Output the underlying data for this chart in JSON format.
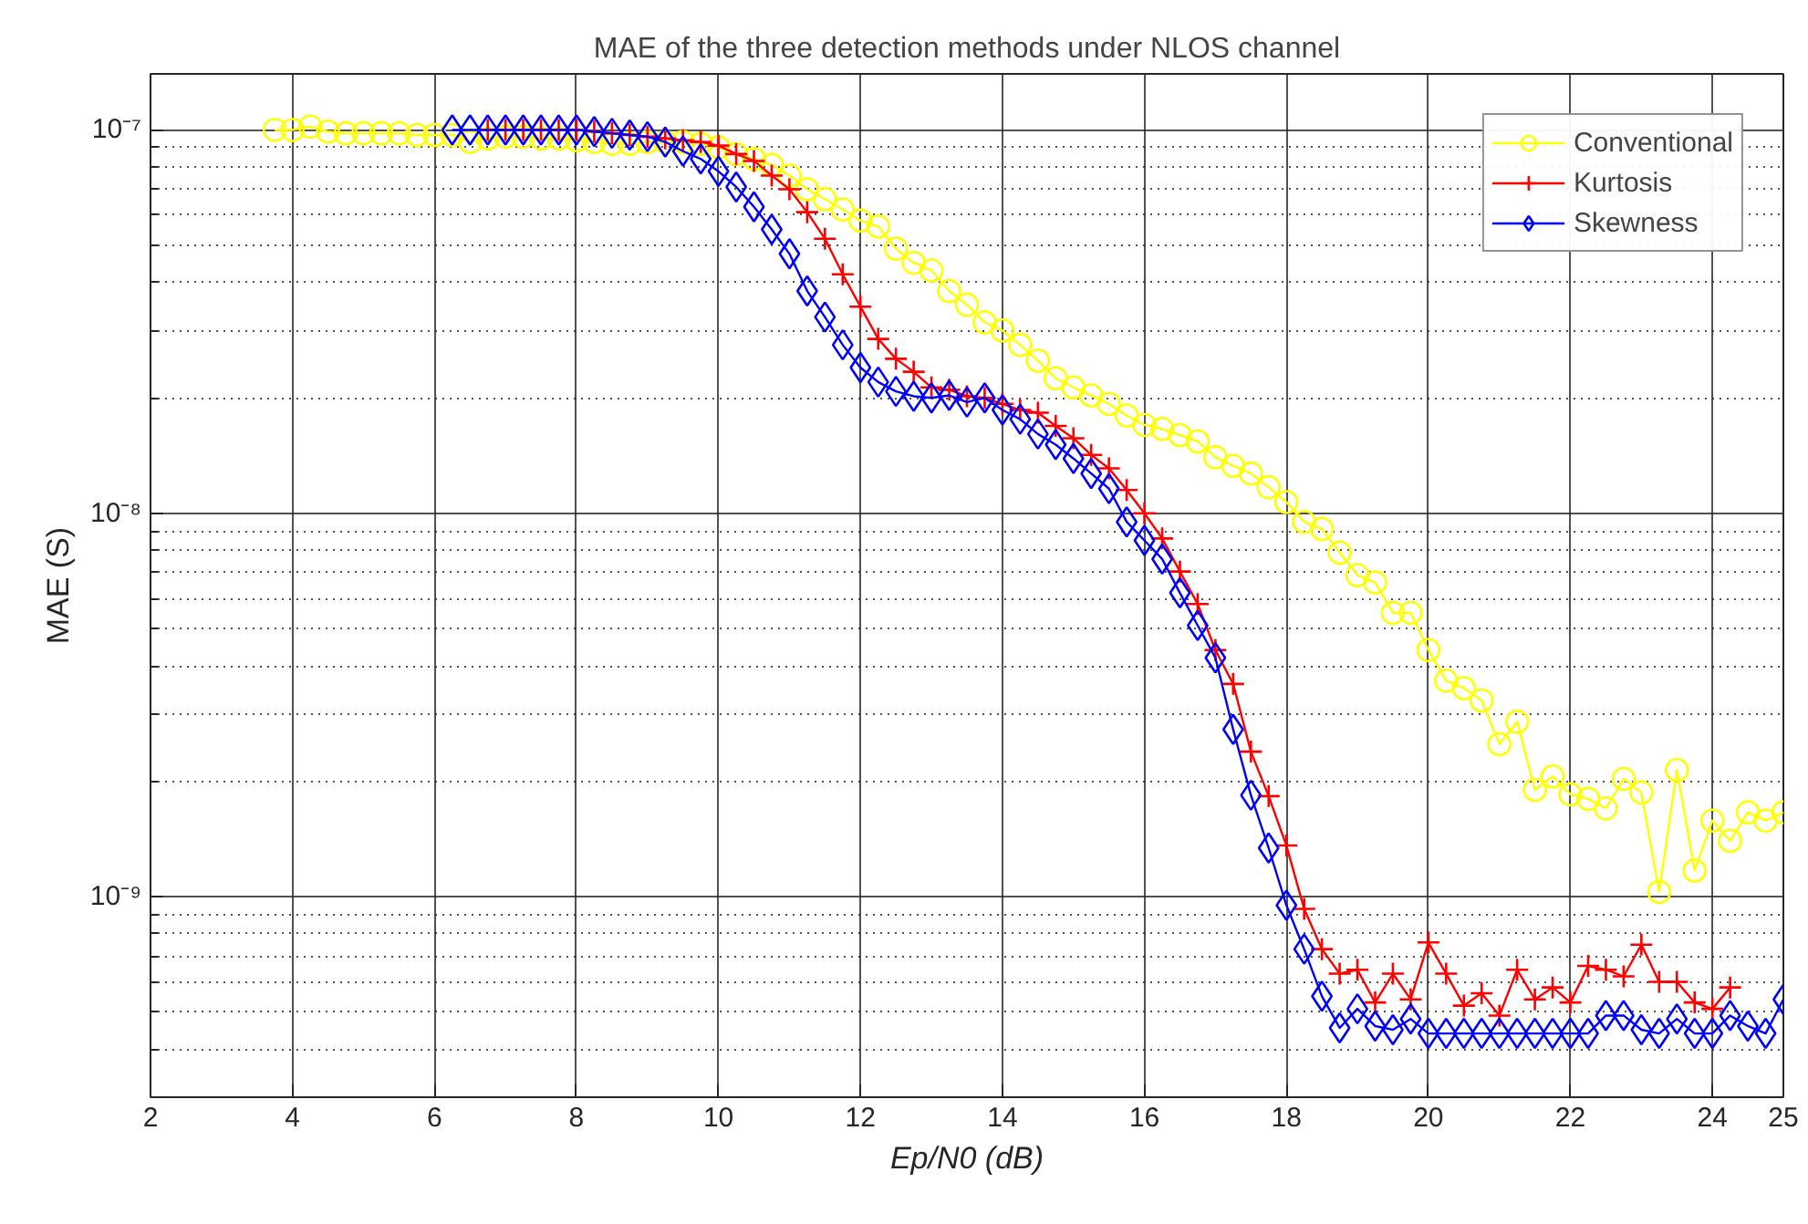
{
  "chart_data": {
    "type": "line",
    "title": "MAE of the three detection methods under NLOS channel",
    "xlabel": "Ep/N0 (dB)",
    "ylabel": "MAE (S)",
    "log": "y",
    "grid": true,
    "legend": "top right",
    "line_style": "solid",
    "xlim": [
      2,
      25
    ],
    "xticks": [
      2,
      4,
      6,
      8,
      10,
      12,
      14,
      16,
      18,
      20,
      22,
      24,
      25
    ],
    "ylim": [
      3e-10,
      1.4e-07
    ],
    "yticks": [
      {
        "value": 4e-10,
        "label": null
      },
      {
        "value": 5e-10,
        "label": null
      },
      {
        "value": 6e-10,
        "label": null
      },
      {
        "value": 7e-10,
        "label": null
      },
      {
        "value": 8e-10,
        "label": null
      },
      {
        "value": 9e-10,
        "label": null
      },
      {
        "value": 1e-09,
        "label": "10⁻⁹"
      },
      {
        "value": 2e-09,
        "label": null
      },
      {
        "value": 3e-09,
        "label": null
      },
      {
        "value": 4e-09,
        "label": null
      },
      {
        "value": 5e-09,
        "label": null
      },
      {
        "value": 6e-09,
        "label": null
      },
      {
        "value": 7e-09,
        "label": null
      },
      {
        "value": 8e-09,
        "label": null
      },
      {
        "value": 9e-09,
        "label": null
      },
      {
        "value": 1e-08,
        "label": "10⁻⁸"
      },
      {
        "value": 2e-08,
        "label": null
      },
      {
        "value": 3e-08,
        "label": null
      },
      {
        "value": 4e-08,
        "label": null
      },
      {
        "value": 5e-08,
        "label": null
      },
      {
        "value": 6e-08,
        "label": null
      },
      {
        "value": 7e-08,
        "label": null
      },
      {
        "value": 8e-08,
        "label": null
      },
      {
        "value": 9e-08,
        "label": null
      },
      {
        "value": 1e-07,
        "label": "10⁻⁷"
      }
    ],
    "series": [
      {
        "name": "Conventional",
        "color": "#ffff00",
        "marker": "circle",
        "x": [
          3.75,
          4,
          4.25,
          4.5,
          4.75,
          5,
          5.25,
          5.5,
          5.75,
          6,
          6.25,
          6.5,
          6.75,
          7,
          7.25,
          7.5,
          7.75,
          8,
          8.25,
          8.5,
          8.75,
          9,
          9.25,
          9.5,
          9.75,
          10,
          10.25,
          10.5,
          10.75,
          11,
          11.25,
          11.5,
          11.75,
          12,
          12.25,
          12.5,
          12.75,
          13,
          13.25,
          13.5,
          13.75,
          14,
          14.25,
          14.5,
          14.75,
          15,
          15.25,
          15.5,
          15.75,
          16,
          16.25,
          16.5,
          16.75,
          17,
          17.25,
          17.5,
          17.75,
          18,
          18.25,
          18.5,
          18.75,
          19,
          19.25,
          19.5,
          19.75,
          20,
          20.25,
          20.5,
          20.75,
          21,
          21.25,
          21.5,
          21.75,
          22,
          22.25,
          22.5,
          22.75,
          23,
          23.25,
          23.5,
          23.75,
          24,
          24.25,
          24.5,
          24.75,
          25
        ],
        "values": [
          1e-07,
          1e-07,
          1.02e-07,
          9.9e-08,
          9.8e-08,
          9.8e-08,
          9.8e-08,
          9.8e-08,
          9.7e-08,
          9.7e-08,
          9.7e-08,
          9.3e-08,
          9.5e-08,
          9.6e-08,
          9.6e-08,
          9.5e-08,
          9.5e-08,
          9.4e-08,
          9.3e-08,
          9.2e-08,
          9.2e-08,
          9.3e-08,
          9.3e-08,
          9.3e-08,
          9.2e-08,
          9e-08,
          8.65e-08,
          8.4e-08,
          8.1e-08,
          7.6e-08,
          7e-08,
          6.6e-08,
          6.2e-08,
          5.8e-08,
          5.6e-08,
          4.9e-08,
          4.5e-08,
          4.3e-08,
          3.8e-08,
          3.5e-08,
          3.15e-08,
          3e-08,
          2.75e-08,
          2.5e-08,
          2.25e-08,
          2.13e-08,
          2.03e-08,
          1.93e-08,
          1.8e-08,
          1.7e-08,
          1.66e-08,
          1.6e-08,
          1.54e-08,
          1.4e-08,
          1.33e-08,
          1.27e-08,
          1.17e-08,
          1.07e-08,
          9.5e-09,
          9.1e-09,
          7.9e-09,
          6.9e-09,
          6.6e-09,
          5.5e-09,
          5.5e-09,
          4.4e-09,
          3.66e-09,
          3.5e-09,
          3.25e-09,
          2.5e-09,
          2.86e-09,
          1.9e-09,
          2.06e-09,
          1.85e-09,
          1.8e-09,
          1.7e-09,
          2.03e-09,
          1.87e-09,
          1.03e-09,
          2.14e-09,
          1.17e-09,
          1.58e-09,
          1.4e-09,
          1.66e-09,
          1.58e-09,
          1.66e-09
        ]
      },
      {
        "name": "Kurtosis",
        "color": "#ff0000",
        "marker": "cross",
        "x": [
          6.75,
          7,
          7.25,
          7.5,
          7.75,
          8,
          8.25,
          8.5,
          8.75,
          9,
          9.25,
          9.5,
          9.75,
          10,
          10.25,
          10.5,
          10.75,
          11,
          11.25,
          11.5,
          11.75,
          12,
          12.25,
          12.5,
          12.75,
          13,
          13.25,
          13.5,
          13.75,
          14,
          14.25,
          14.5,
          14.75,
          15,
          15.25,
          15.5,
          15.75,
          16,
          16.25,
          16.5,
          16.75,
          17,
          17.25,
          17.5,
          17.75,
          18,
          18.25,
          18.5,
          18.75,
          19,
          19.25,
          19.5,
          19.75,
          20,
          20.25,
          20.5,
          20.75,
          21,
          21.25,
          21.5,
          21.75,
          22,
          22.25,
          22.5,
          22.75,
          23,
          23.25,
          23.5,
          23.75,
          24,
          24.25
        ],
        "values": [
          1e-07,
          1e-07,
          1e-07,
          1e-07,
          1e-07,
          1e-07,
          9.9e-08,
          9.8e-08,
          9.7e-08,
          9.6e-08,
          9.5e-08,
          9.4e-08,
          9.3e-08,
          9.1e-08,
          8.65e-08,
          8.3e-08,
          7.6e-08,
          7e-08,
          6.1e-08,
          5.2e-08,
          4.2e-08,
          3.46e-08,
          2.85e-08,
          2.53e-08,
          2.34e-08,
          2.13e-08,
          2.1e-08,
          2.02e-08,
          2e-08,
          1.93e-08,
          1.86e-08,
          1.83e-08,
          1.69e-08,
          1.57e-08,
          1.42e-08,
          1.31e-08,
          1.15e-08,
          1e-08,
          8.6e-09,
          7.05e-09,
          5.8e-09,
          4.4e-09,
          3.59e-09,
          2.39e-09,
          1.83e-09,
          1.36e-09,
          9.3e-10,
          7.3e-10,
          6.3e-10,
          6.45e-10,
          5.3e-10,
          6.3e-10,
          5.4e-10,
          7.6e-10,
          6.3e-10,
          5.2e-10,
          5.6e-10,
          4.9e-10,
          6.45e-10,
          5.4e-10,
          5.8e-10,
          5.3e-10,
          6.6e-10,
          6.45e-10,
          6.2e-10,
          7.5e-10,
          6e-10,
          6e-10,
          5.3e-10,
          5.1e-10,
          5.8e-10
        ]
      },
      {
        "name": "Skewness",
        "color": "#0000ff",
        "marker": "diamond",
        "x": [
          6.25,
          6.5,
          6.75,
          7,
          7.25,
          7.5,
          7.75,
          8,
          8.25,
          8.5,
          8.75,
          9,
          9.25,
          9.5,
          9.75,
          10,
          10.25,
          10.5,
          10.75,
          11,
          11.25,
          11.5,
          11.75,
          12,
          12.25,
          12.5,
          12.75,
          13,
          13.25,
          13.5,
          13.75,
          14,
          14.25,
          14.5,
          14.75,
          15,
          15.25,
          15.5,
          15.75,
          16,
          16.25,
          16.5,
          16.75,
          17,
          17.25,
          17.5,
          17.75,
          18,
          18.25,
          18.5,
          18.75,
          19,
          19.25,
          19.5,
          19.75,
          20,
          20.25,
          20.5,
          20.75,
          21,
          21.25,
          21.5,
          21.75,
          22,
          22.25,
          22.5,
          22.75,
          23,
          23.25,
          23.5,
          23.75,
          24,
          24.25,
          24.5,
          24.75,
          25
        ],
        "values": [
          1e-07,
          1e-07,
          1e-07,
          1e-07,
          1e-07,
          1e-07,
          1e-07,
          1e-07,
          9.9e-08,
          9.8e-08,
          9.7e-08,
          9.6e-08,
          9.3e-08,
          8.8e-08,
          8.4e-08,
          7.8e-08,
          7.1e-08,
          6.3e-08,
          5.5e-08,
          4.75e-08,
          3.8e-08,
          3.25e-08,
          2.75e-08,
          2.4e-08,
          2.2e-08,
          2.08e-08,
          2.02e-08,
          2e-08,
          2.03e-08,
          1.95e-08,
          2e-08,
          1.86e-08,
          1.76e-08,
          1.61e-08,
          1.51e-08,
          1.39e-08,
          1.27e-08,
          1.16e-08,
          9.5e-09,
          8.5e-09,
          7.6e-09,
          6.2e-09,
          5.1e-09,
          4.2e-09,
          2.73e-09,
          1.84e-09,
          1.34e-09,
          9.5e-10,
          7.3e-10,
          5.5e-10,
          4.55e-10,
          5.1e-10,
          4.6e-10,
          4.5e-10,
          4.8e-10,
          4.4e-10,
          4.4e-10,
          4.4e-10,
          4.4e-10,
          4.4e-10,
          4.4e-10,
          4.4e-10,
          4.4e-10,
          4.4e-10,
          4.4e-10,
          4.9e-10,
          4.9e-10,
          4.5e-10,
          4.4e-10,
          4.8e-10,
          4.4e-10,
          4.4e-10,
          4.9e-10,
          4.6e-10,
          4.4e-10,
          5.4e-10
        ]
      }
    ]
  }
}
